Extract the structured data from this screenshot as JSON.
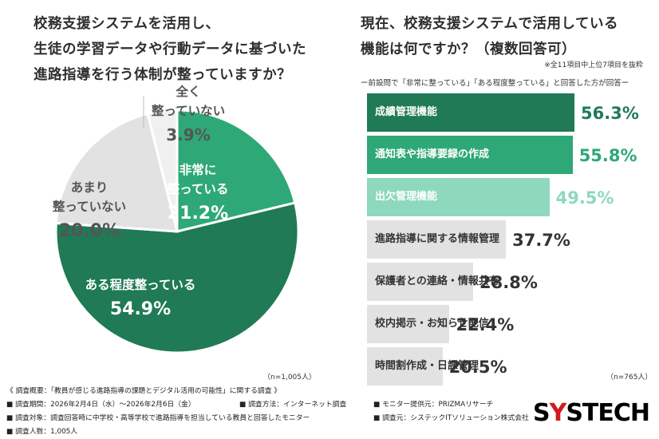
{
  "left": {
    "title_lines": [
      "校務支援システムを活用し、",
      "生徒の学習データや行動データに基づいた",
      "進路指導を行う体制が整っていますか？"
    ],
    "n_label": "（n=1,005人）"
  },
  "right": {
    "title_lines": [
      "現在、校務支援システムで活用している",
      "機能は何ですか？（複数回答可）"
    ],
    "note": "※全11項目中上位7項目を抜粋",
    "subtitle": "ー前設問で「非常に整っている」「ある程度整っている」と回答した方が回答ー",
    "n_label": "（n=765人）"
  },
  "chart_data": [
    {
      "type": "pie",
      "title": "校務支援システムを活用し、生徒の学習データや行動データに基づいた進路指導を行う体制が整っていますか？",
      "slices": [
        {
          "label_lines": [
            "非常に",
            "整っている"
          ],
          "value": 21.2,
          "value_text": "21.2%",
          "color": "#2ea876",
          "text_color": "#ffffff"
        },
        {
          "label_lines": [
            "ある程度整っている"
          ],
          "value": 54.9,
          "value_text": "54.9%",
          "color": "#1f7a55",
          "text_color": "#ffffff"
        },
        {
          "label_lines": [
            "あまり",
            "整っていない"
          ],
          "value": 20.0,
          "value_text": "20.0%",
          "color": "#e2e2e2",
          "text_color": "#555555"
        },
        {
          "label_lines": [
            "全く",
            "整っていない"
          ],
          "value": 3.9,
          "value_text": "3.9%",
          "color": "#f0f0f0",
          "text_color": "#555555"
        }
      ]
    },
    {
      "type": "bar",
      "orientation": "horizontal",
      "title": "現在、校務支援システムで活用している機能は何ですか？（複数回答可）",
      "categories": [
        "成績管理機能",
        "通知表や指導要録の作成",
        "出欠管理機能",
        "進路指導に関する情報管理",
        "保護者との連絡・情報共有",
        "校内掲示・お知らせ配信",
        "時間割作成・日課管理"
      ],
      "values": [
        56.3,
        55.8,
        49.5,
        37.7,
        28.8,
        22.4,
        20.5
      ],
      "value_texts": [
        "56.3%",
        "55.8%",
        "49.5%",
        "37.7%",
        "28.8%",
        "22.4%",
        "20.5%"
      ],
      "colors": [
        "#1f7a55",
        "#2ea876",
        "#8ed8bd",
        "#e2e2e2",
        "#e2e2e2",
        "#e2e2e2",
        "#e2e2e2"
      ],
      "label_colors": [
        "#ffffff",
        "#ffffff",
        "#ffffff",
        "#333333",
        "#333333",
        "#333333",
        "#333333"
      ],
      "value_colors": [
        "#1f7a55",
        "#2ea876",
        "#8ed8bd",
        "#333333",
        "#333333",
        "#333333",
        "#333333"
      ]
    }
  ],
  "footer": {
    "overview": "《 調査概要：「教員が感じる進路指導の課題とデジタル活用の可能性」に関する調査 》",
    "period": "■ 調査期間：2026年2月4日（水）～2026年2月6日（金）",
    "method": "■ 調査方法：インターネット調査",
    "provider": "■ モニター提供元：PRIZMAリサーチ",
    "target": "■ 調査対象：調査回答時に中学校・高等学校で進路指導を担当している教員と回答したモニター",
    "organizer": "■ 調査元：システックITソリューション株式会社",
    "count": "■ 調査人数：1,005人"
  },
  "logo": {
    "prefix": "S",
    "highlight": "Y",
    "suffix": "STECH"
  }
}
